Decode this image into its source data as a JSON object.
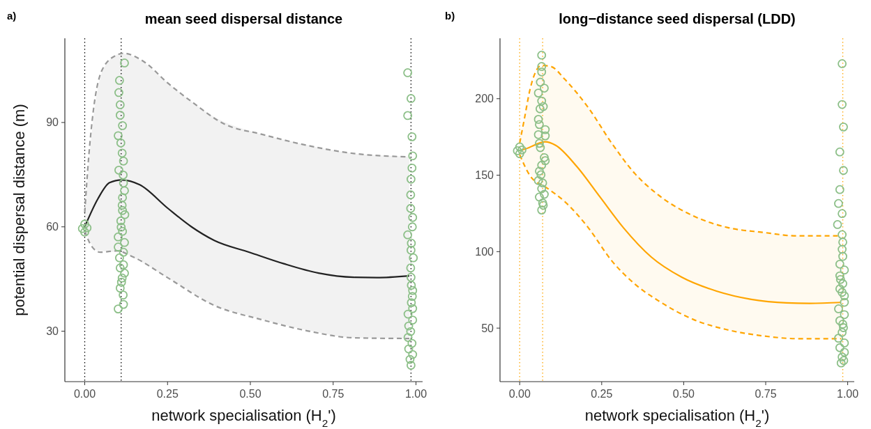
{
  "chart_data": [
    {
      "type": "line",
      "title": "mean seed dispersal distance",
      "xlabel": "network specialisation (H$_{2}$')",
      "ylabel": "potential dispersal distance (m)",
      "annotations": [
        "a)"
      ],
      "xlim": [
        -0.06,
        1.02
      ],
      "ylim": [
        15.5,
        114.2
      ],
      "xticks": [
        {
          "value": 0,
          "label": "0.00"
        },
        {
          "value": 0.25,
          "label": "0.25"
        },
        {
          "value": 0.5,
          "label": "0.50"
        },
        {
          "value": 0.75,
          "label": "0.75"
        },
        {
          "value": 1,
          "label": "1.00"
        }
      ],
      "yticks": [
        30,
        60,
        90
      ],
      "grid": false,
      "ref_lines": [
        {
          "axis": "x",
          "value": 0,
          "color": "#000000",
          "line_style": "dotted"
        },
        {
          "axis": "x",
          "value": 0.11,
          "color": "#000000",
          "line_style": "dotted"
        },
        {
          "axis": "x",
          "value": 0.985,
          "color": "#000000",
          "line_style": "dotted"
        }
      ],
      "series": [
        {
          "type": "line",
          "color": "#222222",
          "line_style": "solid",
          "x": [
            0,
            0.04,
            0.075,
            0.112,
            0.166,
            0.25,
            0.321,
            0.391,
            0.497,
            0.601,
            0.706,
            0.812,
            0.882,
            0.98
          ],
          "values": [
            60,
            68.1,
            72.7,
            73.5,
            72.1,
            65.4,
            60.1,
            56.1,
            52.7,
            49.4,
            46.7,
            45.5,
            45.4,
            45.9
          ],
          "lower": [
            58.8,
            53.2,
            52.9,
            52.6,
            50.2,
            45.4,
            41.4,
            37.4,
            34.4,
            31.8,
            29.6,
            28.1,
            28,
            27.9
          ],
          "upper": [
            64.1,
            100,
            108,
            109.8,
            108,
            101.4,
            96.1,
            91.6,
            87.6,
            85,
            82.8,
            81.1,
            80.6,
            80.1
          ]
        },
        {
          "type": "line",
          "color": "#999999",
          "line_style": "dashed",
          "x": [
            0,
            0.012,
            0.026,
            0.054,
            0.097,
            0.117,
            0.18,
            0.25,
            0.321,
            0.425,
            0.531,
            0.672,
            0.812,
            0.98
          ],
          "values": [
            64.1,
            80.1,
            93.4,
            105.4,
            109.4,
            109.9,
            107.4,
            101.4,
            96.1,
            89.4,
            86.7,
            83.4,
            81.1,
            80.1
          ]
        },
        {
          "type": "line",
          "color": "#999999",
          "line_style": "dashed",
          "x": [
            0,
            0.019,
            0.047,
            0.097,
            0.145,
            0.25,
            0.391,
            0.531,
            0.672,
            0.812,
            0.98
          ],
          "values": [
            58.8,
            54.7,
            52.7,
            53.1,
            51.4,
            45.4,
            37.4,
            33.4,
            30.1,
            28.1,
            27.9
          ]
        },
        {
          "type": "scatter",
          "color": "#8cbf88",
          "marker": "circle",
          "x": [
            0.12,
            0.105,
            0.103,
            0.107,
            0.107,
            0.114,
            0.101,
            0.109,
            0.113,
            0.117,
            0.103,
            0.116,
            0.117,
            0.12,
            0.114,
            0.113,
            0.114,
            0.121,
            0.109,
            0.11,
            0.114,
            0.101,
            0.12,
            0.101,
            0.117,
            0.105,
            0.117,
            0.107,
            0.12,
            0.113,
            0.111,
            0.107,
            0.116,
            0.117,
            0.101
          ],
          "values": [
            107.1,
            102.1,
            98.6,
            95.1,
            92.1,
            89.1,
            86.2,
            84.1,
            81.2,
            78.9,
            76.3,
            74.9,
            72.6,
            70.4,
            68.4,
            66.2,
            64.7,
            63.5,
            61.7,
            59.9,
            58.7,
            57.1,
            55.5,
            54.2,
            52.7,
            51.1,
            49.1,
            48.2,
            46.7,
            45.3,
            44.1,
            42.4,
            40.4,
            37.7,
            36.4
          ]
        },
        {
          "type": "scatter",
          "color": "#8cbf88",
          "marker": "circle",
          "x": [
            0.975,
            0.985,
            0.975,
            0.988,
            0.99,
            0.988,
            0.985,
            0.984,
            0.984,
            0.99,
            0.989,
            0.975,
            0.986,
            0.985,
            0.992,
            0.984,
            0.985,
            0.986,
            0.99,
            0.989,
            0.986,
            0.99,
            0.976,
            0.99,
            0.978,
            0.984,
            0.976,
            0.988,
            0.978,
            0.99,
            0.982,
            0.985
          ],
          "values": [
            104.3,
            96.9,
            92,
            85.9,
            80.4,
            76.9,
            73.7,
            69.2,
            65.3,
            62.7,
            60,
            57.7,
            55.3,
            53.3,
            51.1,
            48.2,
            45.5,
            43.2,
            41.7,
            40,
            38.2,
            36.5,
            34.9,
            33.2,
            31.5,
            29.9,
            28.2,
            26.5,
            24.9,
            23.3,
            21.9,
            20.2
          ]
        },
        {
          "type": "scatter",
          "color": "#8cbf88",
          "marker": "circle",
          "x": [
            -0.007,
            0.007,
            0,
            0
          ],
          "values": [
            59.5,
            59.7,
            60.8,
            58.5
          ]
        }
      ]
    },
    {
      "type": "line",
      "title": "long−distance seed dispersal (LDD)",
      "xlabel": "network specialisation (H$_{2}$')",
      "annotations": [
        "b)"
      ],
      "xlim": [
        -0.06,
        1.02
      ],
      "ylim": [
        15,
        239.5
      ],
      "xticks": [
        {
          "value": 0,
          "label": "0.00"
        },
        {
          "value": 0.25,
          "label": "0.25"
        },
        {
          "value": 0.5,
          "label": "0.50"
        },
        {
          "value": 0.75,
          "label": "0.75"
        },
        {
          "value": 1,
          "label": "1.00"
        }
      ],
      "yticks": [
        50,
        100,
        150,
        200
      ],
      "grid": false,
      "ref_lines": [
        {
          "axis": "x",
          "value": 0,
          "color": "#ffa500",
          "line_style": "dotted"
        },
        {
          "axis": "x",
          "value": 0.07,
          "color": "#ffa500",
          "line_style": "dotted"
        },
        {
          "axis": "x",
          "value": 0.985,
          "color": "#ffa500",
          "line_style": "dotted"
        }
      ],
      "series": [
        {
          "type": "line",
          "color": "#ffa500",
          "line_style": "solid",
          "x": [
            0,
            0.018,
            0.078,
            0.11,
            0.174,
            0.245,
            0.316,
            0.401,
            0.493,
            0.6,
            0.706,
            0.813,
            0.884,
            0.98
          ],
          "values": [
            166,
            167.2,
            171.8,
            169.5,
            155.7,
            135.7,
            115.7,
            96.5,
            83.4,
            74.2,
            68.8,
            66.5,
            66.2,
            66.8
          ],
          "lower": [
            163.4,
            155.5,
            142.4,
            137.2,
            124,
            104.8,
            86.4,
            71.2,
            59.8,
            51.1,
            46.2,
            43.7,
            43.1,
            43.1
          ],
          "upper": [
            171,
            191,
            221.5,
            218.2,
            203.4,
            182.8,
            161.1,
            141.3,
            128,
            118.2,
            113.6,
            111,
            110.3,
            110.3
          ]
        },
        {
          "type": "line",
          "color": "#ffa500",
          "line_style": "dashed",
          "x": [
            0,
            0.014,
            0.032,
            0.067,
            0.096,
            0.138,
            0.209,
            0.28,
            0.351,
            0.422,
            0.529,
            0.635,
            0.742,
            0.848,
            0.98
          ],
          "values": [
            171,
            186.5,
            206.5,
            221.8,
            221,
            212.6,
            194.2,
            171.1,
            151.1,
            137.2,
            123.4,
            115.7,
            112.6,
            110.3,
            110.3
          ]
        },
        {
          "type": "line",
          "color": "#ffa500",
          "line_style": "dashed",
          "x": [
            0,
            0.032,
            0.082,
            0.138,
            0.209,
            0.28,
            0.351,
            0.422,
            0.529,
            0.635,
            0.742,
            0.848,
            0.98
          ],
          "values": [
            163.4,
            149.5,
            141.8,
            132.6,
            115.7,
            94.2,
            78.8,
            68,
            55.7,
            48.8,
            44.9,
            43.1,
            43.1
          ]
        },
        {
          "type": "scatter",
          "color": "#8cbf88",
          "marker": "circle",
          "x": [
            0.067,
            0.067,
            0.067,
            0.063,
            0.075,
            0.057,
            0.067,
            0.072,
            0.062,
            0.057,
            0.06,
            0.078,
            0.078,
            0.057,
            0.06,
            0.063,
            0.075,
            0.078,
            0.067,
            0.06,
            0.065,
            0.057,
            0.07,
            0.067,
            0.075,
            0.06,
            0.07,
            0.072,
            0.067
          ],
          "values": [
            228.5,
            221.1,
            217.5,
            210.8,
            206.9,
            203.7,
            198.5,
            194.9,
            193.4,
            186.5,
            183.1,
            179.8,
            175.7,
            176.5,
            170.8,
            168,
            161.5,
            159.5,
            156.5,
            152.6,
            150.3,
            146.5,
            144.9,
            141.1,
            137.5,
            135.7,
            131.8,
            130.3,
            127.2
          ]
        },
        {
          "type": "scatter",
          "color": "#8cbf88",
          "marker": "circle",
          "x": [
            0.983,
            0.983,
            0.987,
            0.976,
            0.987,
            0.976,
            0.972,
            0.983,
            0.969,
            0.983,
            0.985,
            0.983,
            0.985,
            0.976,
            0.99,
            0.976,
            0.978,
            0.985,
            0.976,
            0.983,
            0.99,
            0.99,
            0.972,
            0.99,
            0.976,
            0.985,
            0.987,
            0.983,
            0.972,
            0.99,
            0.976,
            0.99,
            0.983,
            0.988,
            0.98
          ],
          "values": [
            222.9,
            196.2,
            181.5,
            165.2,
            153.1,
            140.6,
            131.5,
            124.9,
            117.7,
            111.1,
            106.2,
            101.5,
            96.9,
            91.8,
            88,
            84.2,
            81.8,
            79.1,
            75.7,
            73.4,
            71.1,
            66.9,
            62.6,
            58.8,
            54.9,
            52.6,
            50.3,
            47.2,
            43.4,
            40.3,
            37.2,
            34.2,
            31.1,
            28.8,
            27.2
          ]
        },
        {
          "type": "scatter",
          "color": "#8cbf88",
          "marker": "circle",
          "x": [
            -0.007,
            0.007,
            0,
            0
          ],
          "values": [
            166,
            166.5,
            168.5,
            164
          ]
        }
      ]
    }
  ]
}
